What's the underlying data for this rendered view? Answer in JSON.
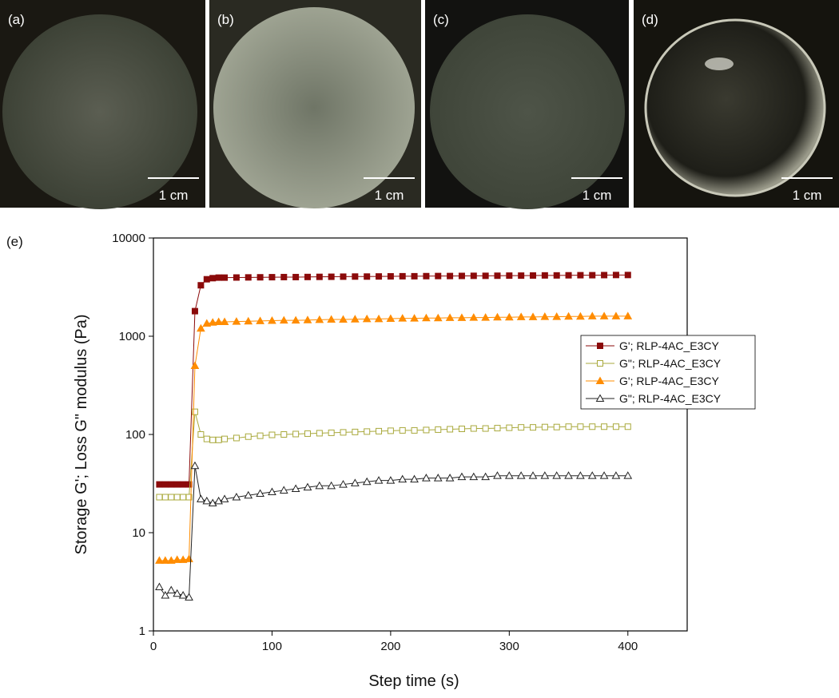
{
  "panels": [
    {
      "label": "(a)",
      "scale_bar": "1 cm"
    },
    {
      "label": "(b)",
      "scale_bar": "1 cm"
    },
    {
      "label": "(c)",
      "scale_bar": "1 cm"
    },
    {
      "label": "(d)",
      "scale_bar": "1 cm"
    }
  ],
  "chart_label": "(e)",
  "chart_data": {
    "type": "line",
    "x_label": "Step time (s)",
    "y_label": "Storage G'; Loss G\" modulus (Pa)",
    "log_y": true,
    "xlim": [
      0,
      450
    ],
    "xticks": [
      0,
      100,
      200,
      300,
      400
    ],
    "ylim": [
      1,
      10000
    ],
    "yticks": [
      1,
      10,
      100,
      1000,
      10000
    ],
    "legend": "upper-right",
    "x": [
      5,
      10,
      15,
      20,
      25,
      30,
      35,
      40,
      45,
      50,
      55,
      60,
      70,
      80,
      90,
      100,
      110,
      120,
      130,
      140,
      150,
      160,
      170,
      180,
      190,
      200,
      210,
      220,
      230,
      240,
      250,
      260,
      270,
      280,
      290,
      300,
      310,
      320,
      330,
      340,
      350,
      360,
      370,
      380,
      390,
      400
    ],
    "series": [
      {
        "name": "G'; RLP-4AC_E3CY",
        "color": "#8b0a0a",
        "marker": "square",
        "filled": true,
        "values": [
          31,
          31,
          31,
          31,
          31,
          31,
          1800,
          3300,
          3800,
          3900,
          3950,
          3950,
          3960,
          3970,
          3980,
          3990,
          4000,
          4000,
          4010,
          4020,
          4030,
          4040,
          4050,
          4050,
          4060,
          4070,
          4080,
          4080,
          4090,
          4100,
          4100,
          4110,
          4120,
          4120,
          4130,
          4140,
          4140,
          4150,
          4160,
          4160,
          4170,
          4180,
          4180,
          4190,
          4200,
          4200
        ]
      },
      {
        "name": "G\"; RLP-4AC_E3CY",
        "color": "#a9a93c",
        "marker": "square",
        "filled": false,
        "values": [
          23,
          23,
          23,
          23,
          23,
          23,
          170,
          100,
          90,
          88,
          88,
          90,
          92,
          95,
          97,
          99,
          100,
          101,
          102,
          103,
          104,
          105,
          106,
          107,
          108,
          109,
          110,
          110,
          111,
          112,
          113,
          114,
          115,
          115,
          116,
          117,
          118,
          118,
          119,
          119,
          120,
          120,
          120,
          120,
          120,
          120
        ]
      },
      {
        "name": "G'; RLP-4AC_E3CY",
        "color": "#ff8c00",
        "marker": "triangle",
        "filled": true,
        "values": [
          5.2,
          5.2,
          5.2,
          5.3,
          5.3,
          5.4,
          500,
          1200,
          1350,
          1380,
          1400,
          1400,
          1410,
          1420,
          1430,
          1440,
          1450,
          1450,
          1460,
          1470,
          1480,
          1480,
          1490,
          1500,
          1500,
          1510,
          1520,
          1520,
          1530,
          1530,
          1540,
          1540,
          1550,
          1550,
          1560,
          1560,
          1570,
          1570,
          1580,
          1580,
          1590,
          1590,
          1600,
          1600,
          1600,
          1600
        ]
      },
      {
        "name": "G\"; RLP-4AC_E3CY",
        "color": "#222222",
        "marker": "triangle",
        "filled": false,
        "values": [
          2.8,
          2.3,
          2.6,
          2.4,
          2.3,
          2.2,
          48,
          22,
          21,
          20,
          21,
          22,
          23,
          24,
          25,
          26,
          27,
          28,
          29,
          30,
          30,
          31,
          32,
          33,
          34,
          34,
          35,
          35,
          36,
          36,
          36,
          37,
          37,
          37,
          38,
          38,
          38,
          38,
          38,
          38,
          38,
          38,
          38,
          38,
          38,
          38
        ]
      }
    ]
  }
}
